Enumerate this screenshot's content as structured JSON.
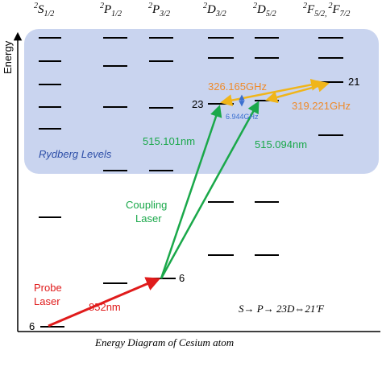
{
  "headers": [
    [
      {
        "mult": "2",
        "term": "S",
        "j": "1/2"
      }
    ],
    [
      {
        "mult": "2",
        "term": "P",
        "j": "1/2"
      }
    ],
    [
      {
        "mult": "2",
        "term": "P",
        "j": "3/2"
      }
    ],
    [
      {
        "mult": "2",
        "term": "D",
        "j": "3/2"
      }
    ],
    [
      {
        "mult": "2",
        "term": "D",
        "j": "5/2"
      }
    ],
    [
      {
        "mult": "2",
        "term": "F",
        "j": "5/2,"
      },
      {
        "mult": "2",
        "term": "F",
        "j": "7/2"
      }
    ]
  ],
  "axis_label": "Energy",
  "region_label": "Rydberg Levels",
  "level_labels": {
    "ground": "6",
    "p_state": "6",
    "d_state": "23",
    "f_state": "21"
  },
  "transitions": {
    "probe": {
      "label": [
        "Probe",
        "Laser"
      ],
      "wavelength": "852nm"
    },
    "coupling": {
      "label": [
        "Coupling",
        "Laser"
      ],
      "wavelength_1": "515.101nm",
      "wavelength_2": "515.094nm"
    },
    "microwave": {
      "freq_1": "326.165GHz",
      "freq_2": "319.221GHz",
      "splitting": "6.944GHz"
    }
  },
  "scheme": "S→  P→ 23D⇔21′F",
  "title": "Energy Diagram of Cesium atom"
}
